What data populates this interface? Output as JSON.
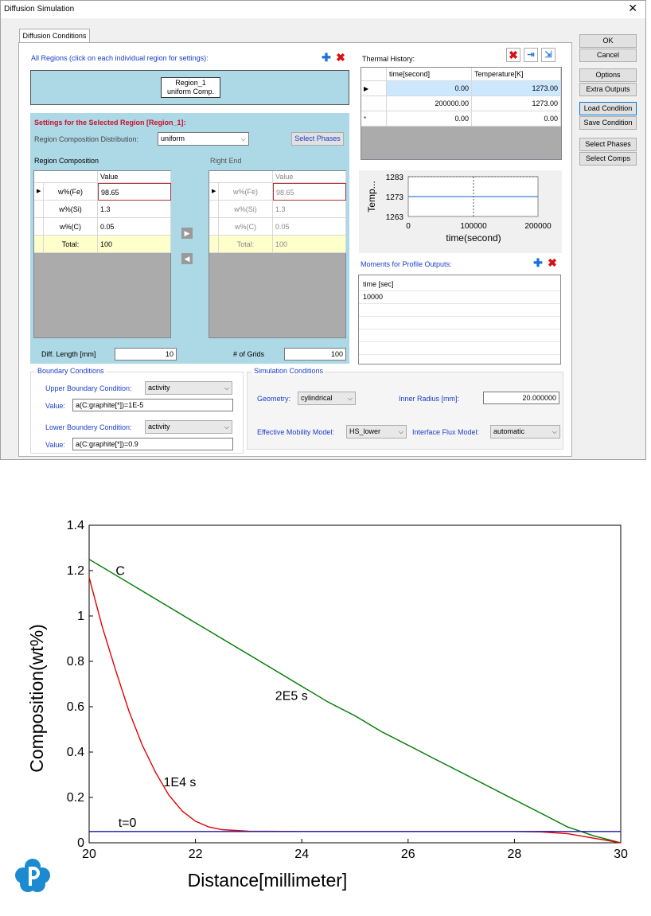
{
  "window": {
    "title": "Diffusion Simulation",
    "close": "✕"
  },
  "tab": "Diffusion Conditions",
  "regions": {
    "header": "All Regions (click on each individual region for settings):",
    "region_name": "Region_1",
    "region_desc": "uniform Comp."
  },
  "settings": {
    "header": "Settings for the Selected Region [Region_1]:",
    "distribution_label": "Region Composition Distribution:",
    "distribution_value": "uniform",
    "select_phases": "Select Phases",
    "region_comp_label": "Region Composition",
    "right_end_label": "Right End",
    "value_header": "Value",
    "left_rows": [
      {
        "name": "w%(Fe)",
        "value": "98.65"
      },
      {
        "name": "w%(Si)",
        "value": "1.3"
      },
      {
        "name": "w%(C)",
        "value": "0.05"
      },
      {
        "name": "Total:",
        "value": "100"
      }
    ],
    "right_rows": [
      {
        "name": "w%(Fe)",
        "value": "98.65"
      },
      {
        "name": "w%(Si)",
        "value": "1.3"
      },
      {
        "name": "w%(C)",
        "value": "0.05"
      },
      {
        "name": "Total:",
        "value": "100"
      }
    ],
    "diff_length_label": "Diff. Length [mm]",
    "diff_length_value": "10",
    "grids_label": "# of Grids",
    "grids_value": "100"
  },
  "thermal": {
    "label": "Thermal History:",
    "col_time": "time[second]",
    "col_temp": "Temperature[K]",
    "rows": [
      {
        "marker": "▶",
        "time": "0.00",
        "temp": "1273.00"
      },
      {
        "marker": "",
        "time": "200000.00",
        "temp": "1273.00"
      },
      {
        "marker": "*",
        "time": "0.00",
        "temp": "0.00"
      }
    ]
  },
  "mini_chart": {
    "ylabel": "Temp...",
    "xlabel": "time(second)",
    "yticks": [
      "1283",
      "1273",
      "1263"
    ],
    "xticks": [
      "0",
      "100000",
      "200000"
    ]
  },
  "moments": {
    "label": "Moments for Profile Outputs:",
    "rows": [
      "time [sec]",
      "10000"
    ]
  },
  "boundary": {
    "caption": "Boundary Conditions",
    "upper_label": "Upper Boundary Condition:",
    "upper_type": "activity",
    "upper_value_label": "Value:",
    "upper_value": "a(C:graphite[*])=1E-5",
    "lower_label": "Lower Boundery Condition:",
    "lower_type": "activity",
    "lower_value_label": "Value:",
    "lower_value": "a(C:graphite[*])=0.9"
  },
  "simulation": {
    "caption": "Simulation Conditions",
    "geometry_label": "Geometry:",
    "geometry_value": "cylindrical",
    "inner_radius_label": "Inner Radius [mm]:",
    "inner_radius_value": "20.000000",
    "mobility_label": "Effective Mobility Model:",
    "mobility_value": "HS_lower",
    "flux_label": "Interface Flux Model:",
    "flux_value": "automatic"
  },
  "side_buttons": [
    "OK",
    "Cancel",
    "Options",
    "Extra Outputs",
    "Load Condition",
    "Save Condition",
    "Select Phases",
    "Select Comps"
  ],
  "colors": {
    "accent_blue": "#1a3ec9",
    "header_red": "#c8102e",
    "panel_blue": "#add8e6",
    "total_yellow": "#ffffcc",
    "selected_row": "#cce8ff"
  },
  "chart_data": {
    "type": "line",
    "xlabel": "Distance[millimeter]",
    "ylabel": "Composition(wt%)",
    "xlim": [
      20,
      30
    ],
    "ylim": [
      0,
      1.4
    ],
    "xticks": [
      20,
      22,
      24,
      26,
      28,
      30
    ],
    "yticks": [
      0,
      0.2,
      0.4,
      0.6,
      0.8,
      1,
      1.2,
      1.4
    ],
    "series": [
      {
        "name": "2E5 s",
        "color": "#007a00",
        "x": [
          20,
          20.5,
          21,
          21.5,
          22,
          22.5,
          23,
          23.5,
          24,
          24.5,
          25,
          25.5,
          26,
          26.5,
          27,
          27.5,
          28,
          28.5,
          29,
          29.5,
          30
        ],
        "y": [
          1.25,
          1.18,
          1.11,
          1.04,
          0.97,
          0.9,
          0.83,
          0.76,
          0.69,
          0.62,
          0.56,
          0.49,
          0.43,
          0.37,
          0.31,
          0.25,
          0.19,
          0.13,
          0.07,
          0.03,
          0.0
        ]
      },
      {
        "name": "1E4 s",
        "color": "#e00000",
        "x": [
          20,
          20.25,
          20.5,
          20.75,
          21,
          21.25,
          21.5,
          21.75,
          22,
          22.25,
          22.5,
          23,
          24,
          25,
          26,
          27,
          28,
          28.5,
          29,
          29.5,
          30
        ],
        "y": [
          1.17,
          0.95,
          0.76,
          0.58,
          0.43,
          0.31,
          0.21,
          0.14,
          0.095,
          0.07,
          0.058,
          0.051,
          0.05,
          0.05,
          0.05,
          0.05,
          0.05,
          0.048,
          0.04,
          0.02,
          0.0
        ]
      },
      {
        "name": "t=0",
        "color": "#1a1aaa",
        "x": [
          20,
          30
        ],
        "y": [
          0.05,
          0.05
        ]
      }
    ],
    "annotations": [
      {
        "text": "C",
        "x": 20.5,
        "y": 1.18
      },
      {
        "text": "2E5 s",
        "x": 23.5,
        "y": 0.63
      },
      {
        "text": "1E4 s",
        "x": 21.4,
        "y": 0.25
      },
      {
        "text": "t=0",
        "x": 20.55,
        "y": 0.07
      }
    ]
  }
}
